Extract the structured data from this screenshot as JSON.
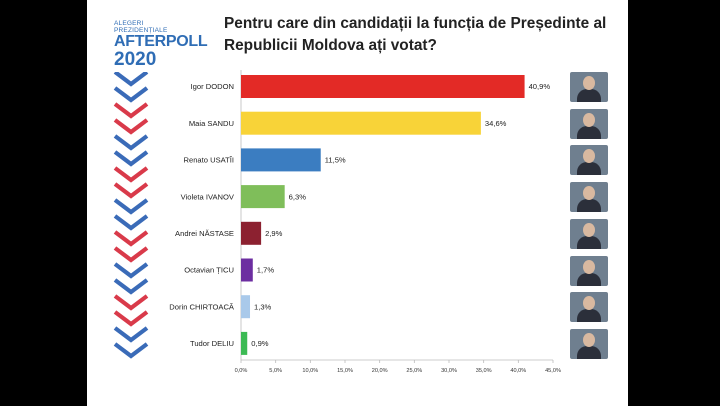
{
  "logo": {
    "line1": "ALEGERI",
    "line2": "PREZIDENȚIALE",
    "brand": "AFTERPOLL",
    "year": "2020"
  },
  "title": "Pentru care din candidații la funcția de Președinte al Republicii Moldova ați votat?",
  "colors": {
    "accent_blue": "#2f6db5",
    "chevron_red": "#d93a4a",
    "chevron_blue": "#3a6bb8"
  },
  "candidates": [
    {
      "name": "Igor DODON",
      "photo": "candidate-photo-icon"
    },
    {
      "name": "Maia SANDU",
      "photo": "candidate-photo-icon"
    },
    {
      "name": "Renato USATÎI",
      "photo": "candidate-photo-icon"
    },
    {
      "name": "Violeta IVANOV",
      "photo": "candidate-photo-icon"
    },
    {
      "name": "Andrei NĂSTASE",
      "photo": "candidate-photo-icon"
    },
    {
      "name": "Octavian ȚICU",
      "photo": "candidate-photo-icon"
    },
    {
      "name": "Dorin CHIRTOACĂ",
      "photo": "candidate-photo-icon"
    },
    {
      "name": "Tudor DELIU",
      "photo": "candidate-photo-icon"
    }
  ],
  "chart_data": {
    "type": "bar",
    "orientation": "horizontal",
    "title": "Pentru care din candidații la funcția de Președinte al Republicii Moldova ați votat?",
    "categories": [
      "Igor DODON",
      "Maia SANDU",
      "Renato USATÎI",
      "Violeta IVANOV",
      "Andrei NĂSTASE",
      "Octavian ȚICU",
      "Dorin CHIRTOACĂ",
      "Tudor DELIU"
    ],
    "values": [
      40.9,
      34.6,
      11.5,
      6.3,
      2.9,
      1.7,
      1.3,
      0.9
    ],
    "value_labels": [
      "40,9%",
      "34,6%",
      "11,5%",
      "6,3%",
      "2,9%",
      "1,7%",
      "1,3%",
      "0,9%"
    ],
    "bar_colors": [
      "#e32a26",
      "#f8d338",
      "#3b7dc1",
      "#7fbe5a",
      "#8c2130",
      "#6c2ea0",
      "#a9c9ea",
      "#3cba54"
    ],
    "xlim": [
      0,
      45
    ],
    "ticks": [
      0,
      5,
      10,
      15,
      20,
      25,
      30,
      35,
      40,
      45
    ],
    "tick_labels": [
      "0,0%",
      "5,0%",
      "10,0%",
      "15,0%",
      "20,0%",
      "25,0%",
      "30,0%",
      "35,0%",
      "40,0%",
      "45,0%"
    ],
    "grid": false,
    "xlabel": "",
    "ylabel": ""
  }
}
